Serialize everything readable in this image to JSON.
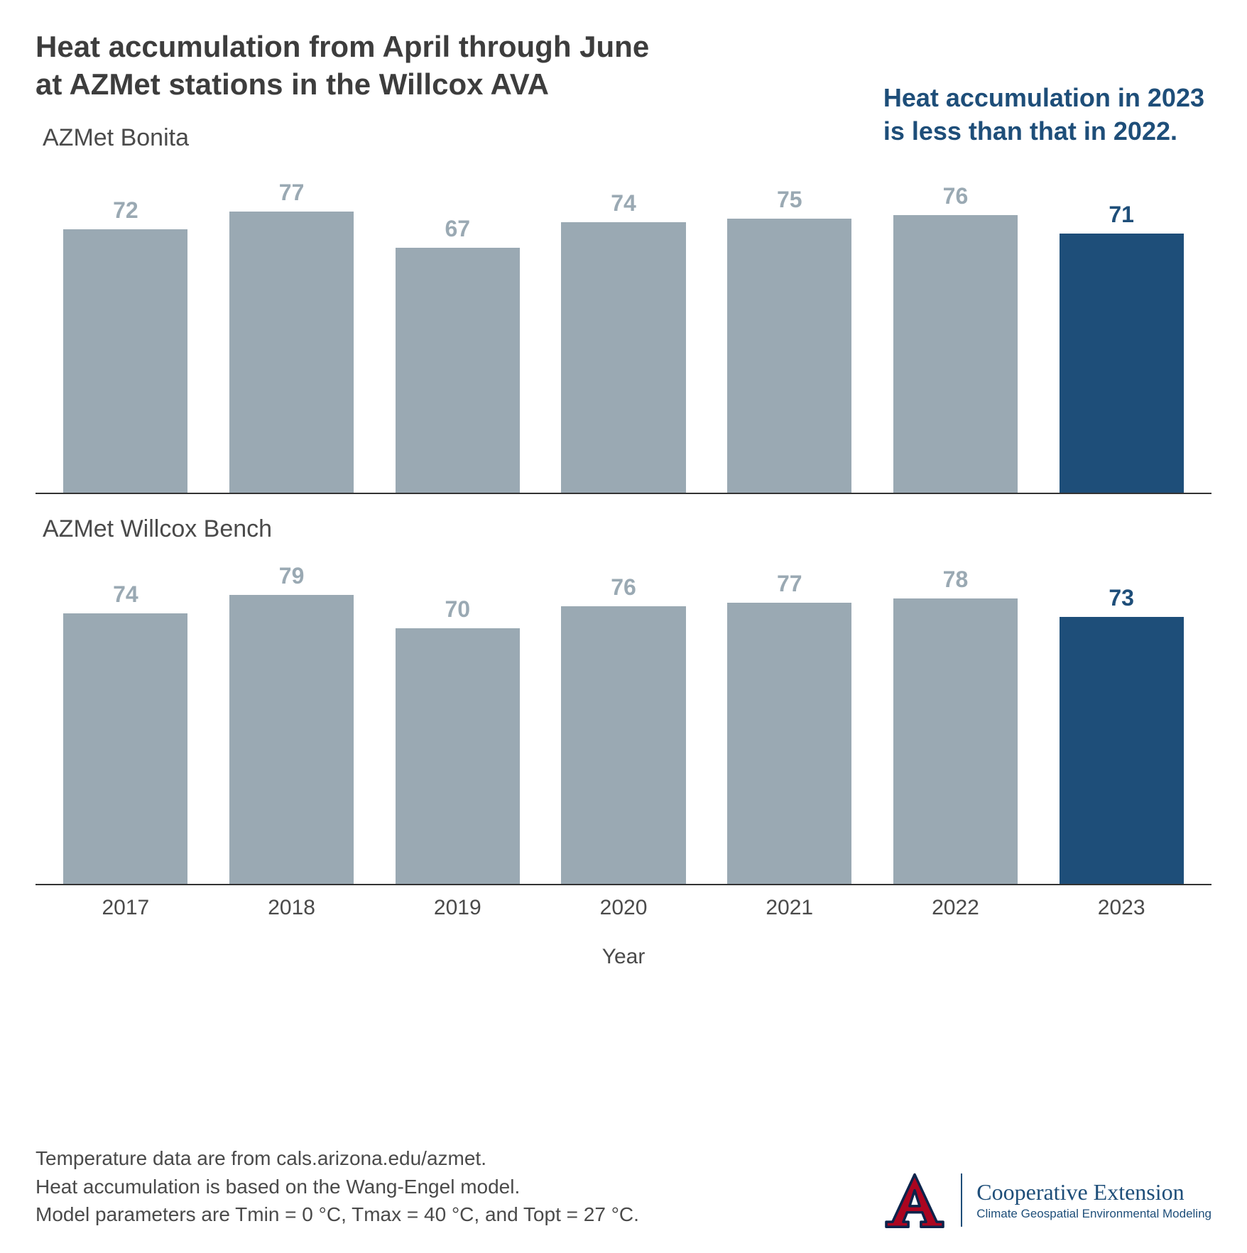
{
  "title_line1": "Heat accumulation from April through June",
  "title_line2": "at AZMet stations in the Willcox AVA",
  "callout_line1": "Heat accumulation in 2023",
  "callout_line2": "is less than that in 2022.",
  "x_axis_label": "Year",
  "chart": {
    "type": "bar",
    "categories": [
      "2017",
      "2018",
      "2019",
      "2020",
      "2021",
      "2022",
      "2023"
    ],
    "highlight_index": 6,
    "ylim": [
      0,
      80
    ],
    "bar_color": "#9aa9b3",
    "highlight_color": "#1e4e79",
    "label_color_normal": "#9aa9b3",
    "label_color_highlight": "#1e4e79",
    "background_color": "#ffffff",
    "axis_line_color": "#333333",
    "bar_width_ratio": 0.82,
    "label_fontsize": 32,
    "label_fontweight": 700,
    "tick_fontsize": 30,
    "panels": [
      {
        "title": "AZMet Bonita",
        "values": [
          72,
          77,
          67,
          74,
          75,
          76,
          71
        ]
      },
      {
        "title": "AZMet Willcox Bench",
        "values": [
          74,
          79,
          70,
          76,
          77,
          78,
          73
        ]
      }
    ]
  },
  "footnote_line1": "Temperature data are from cals.arizona.edu/azmet.",
  "footnote_line2": "Heat accumulation is based on the Wang-Engel model.",
  "footnote_line3": "Model parameters are Tmin = 0 °C, Tmax = 40 °C, and Topt = 27 °C.",
  "logo": {
    "org_title": "Cooperative Extension",
    "org_sub": "Climate Geospatial Environmental Modeling",
    "a_fill": "#ab0520",
    "a_stroke": "#0c234b"
  }
}
